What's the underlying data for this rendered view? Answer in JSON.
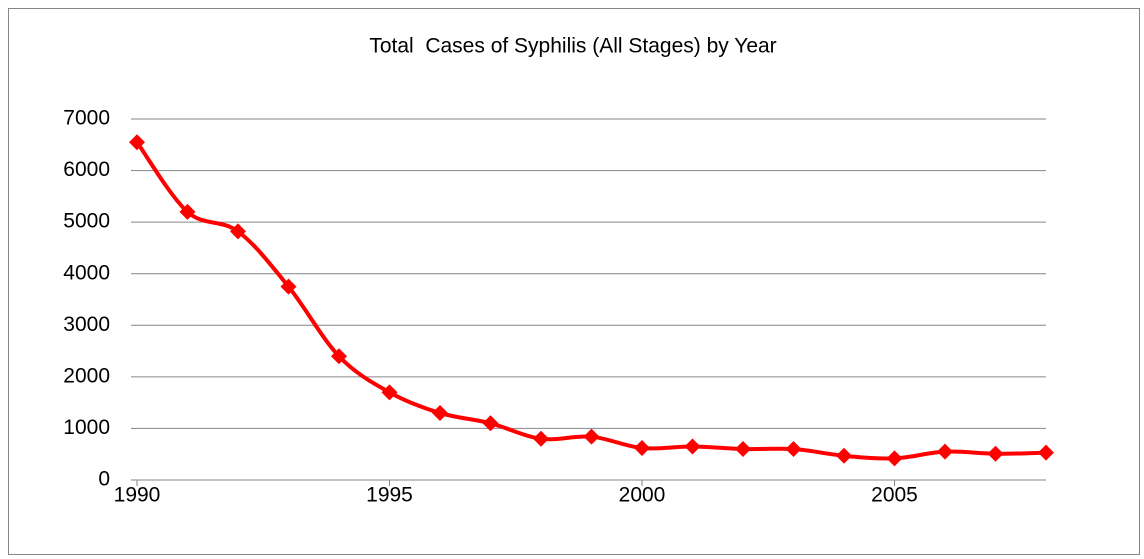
{
  "chart_data": {
    "type": "line",
    "title": "Total  Cases of Syphilis (All Stages) by Year",
    "x": [
      1990,
      1991,
      1992,
      1993,
      1994,
      1995,
      1996,
      1997,
      1998,
      1999,
      2000,
      2001,
      2002,
      2003,
      2004,
      2005,
      2006,
      2007,
      2008
    ],
    "values": [
      6550,
      5200,
      4820,
      3750,
      2400,
      1700,
      1300,
      1100,
      800,
      840,
      620,
      650,
      600,
      600,
      470,
      420,
      550,
      510,
      530
    ],
    "color": "#ff0000",
    "xlim": [
      1990,
      2008
    ],
    "xticks": [
      1990,
      1995,
      2000,
      2005
    ],
    "ylim": [
      0,
      7000
    ],
    "yticks": [
      0,
      1000,
      2000,
      3000,
      4000,
      5000,
      6000,
      7000
    ],
    "grid": true
  }
}
